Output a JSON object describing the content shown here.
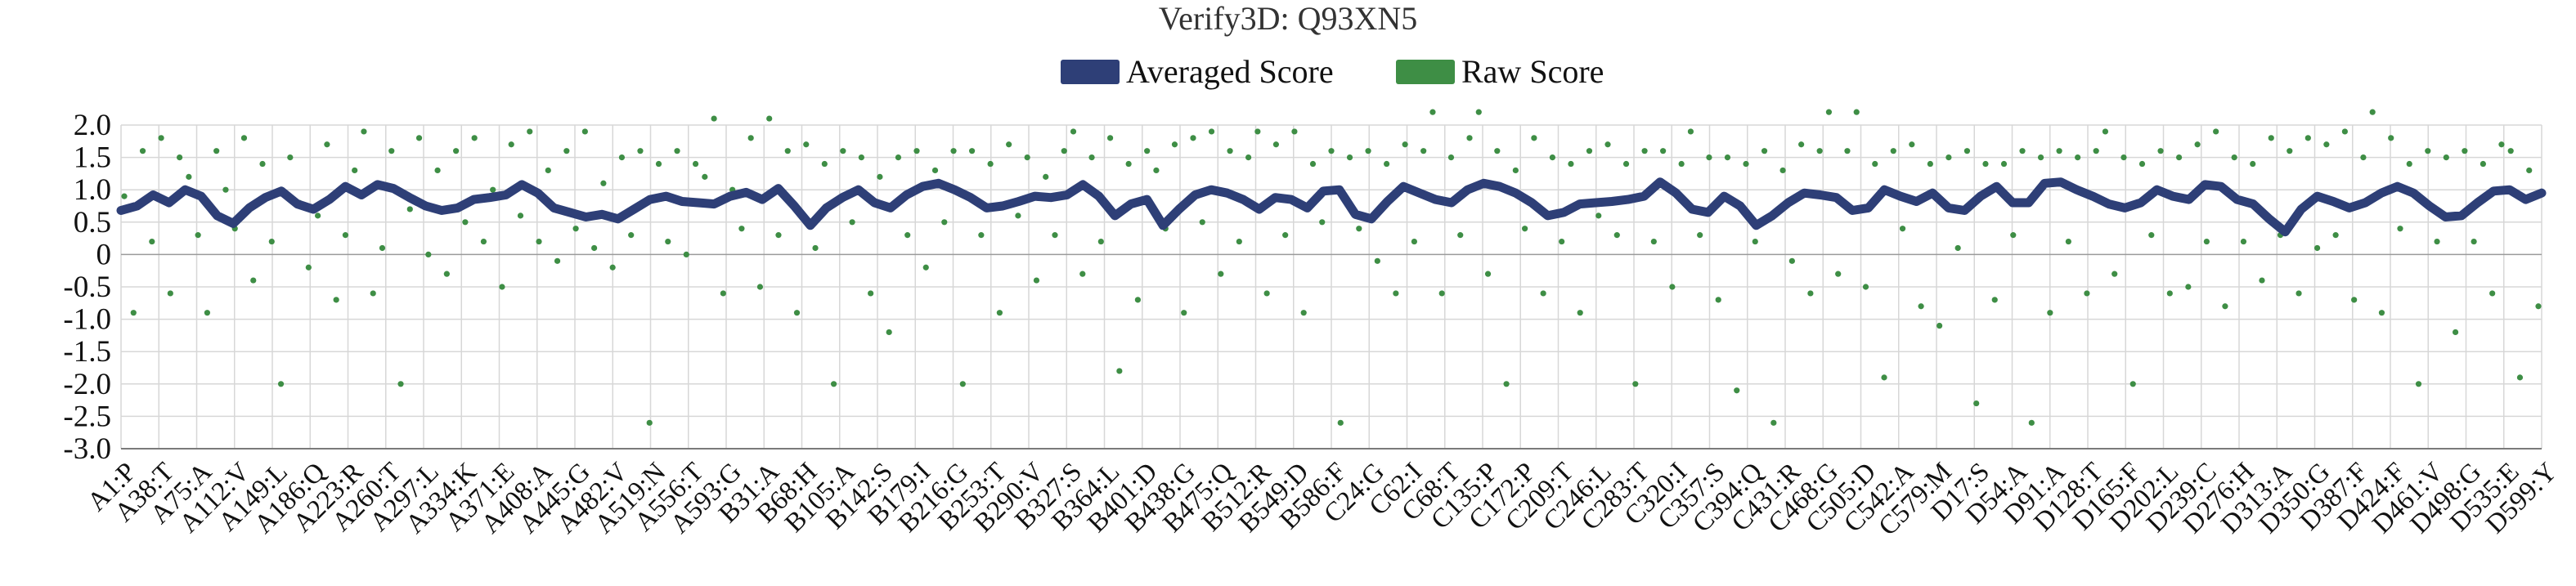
{
  "chart_data": {
    "type": "line+scatter",
    "title": "Verify3D: Q93XN5",
    "xlabel": "",
    "ylabel": "",
    "ylim": [
      -3.0,
      2.0
    ],
    "yticks": [
      2.0,
      1.5,
      1.0,
      0.5,
      0,
      -0.5,
      -1.0,
      -1.5,
      -2.0,
      -2.5,
      -3.0
    ],
    "ytick_labels": [
      "2.0",
      "1.5",
      "1.0",
      "0.5",
      "0",
      "-0.5",
      "-1.0",
      "-1.5",
      "-2.0",
      "-2.5",
      "-3.0"
    ],
    "grid": true,
    "legend_position": "top-center",
    "colors": {
      "averaged": "#2e3f77",
      "raw": "#3e8e45"
    },
    "series": [
      {
        "name": "Averaged Score",
        "kind": "line",
        "values": [
          0.68,
          0.75,
          0.92,
          0.8,
          1.0,
          0.9,
          0.6,
          0.48,
          0.72,
          0.88,
          0.98,
          0.78,
          0.7,
          0.85,
          1.05,
          0.92,
          1.08,
          1.02,
          0.88,
          0.75,
          0.68,
          0.72,
          0.85,
          0.88,
          0.92,
          1.08,
          0.95,
          0.72,
          0.65,
          0.58,
          0.62,
          0.55,
          0.7,
          0.85,
          0.9,
          0.82,
          0.8,
          0.78,
          0.9,
          0.96,
          0.85,
          1.02,
          0.75,
          0.45,
          0.72,
          0.88,
          1.0,
          0.8,
          0.72,
          0.92,
          1.05,
          1.1,
          1.0,
          0.88,
          0.72,
          0.75,
          0.82,
          0.9,
          0.88,
          0.92,
          1.08,
          0.9,
          0.6,
          0.78,
          0.85,
          0.45,
          0.7,
          0.92,
          1.0,
          0.95,
          0.85,
          0.7,
          0.88,
          0.85,
          0.72,
          0.98,
          1.0,
          0.62,
          0.55,
          0.82,
          1.05,
          0.95,
          0.85,
          0.8,
          1.0,
          1.1,
          1.05,
          0.95,
          0.8,
          0.6,
          0.65,
          0.78,
          0.8,
          0.82,
          0.85,
          0.9,
          1.12,
          0.95,
          0.7,
          0.65,
          0.9,
          0.75,
          0.45,
          0.6,
          0.8,
          0.95,
          0.92,
          0.88,
          0.68,
          0.72,
          1.0,
          0.9,
          0.82,
          0.95,
          0.72,
          0.68,
          0.9,
          1.05,
          0.8,
          0.8,
          1.1,
          1.12,
          1.0,
          0.9,
          0.78,
          0.72,
          0.8,
          1.0,
          0.9,
          0.85,
          1.08,
          1.05,
          0.85,
          0.78,
          0.55,
          0.35,
          0.7,
          0.9,
          0.82,
          0.72,
          0.8,
          0.95,
          1.05,
          0.95,
          0.75,
          0.58,
          0.6,
          0.8,
          0.98,
          1.0,
          0.85,
          0.95
        ]
      },
      {
        "name": "Raw Score",
        "kind": "scatter",
        "values": [
          0.9,
          -0.9,
          1.6,
          0.2,
          1.8,
          -0.6,
          1.5,
          1.2,
          0.3,
          -0.9,
          1.6,
          1.0,
          0.4,
          1.8,
          -0.4,
          1.4,
          0.2,
          -2.0,
          1.5,
          0.8,
          -0.2,
          0.6,
          1.7,
          -0.7,
          0.3,
          1.3,
          1.9,
          -0.6,
          0.1,
          1.6,
          -2.0,
          0.7,
          1.8,
          0.0,
          1.3,
          -0.3,
          1.6,
          0.5,
          1.8,
          0.2,
          1.0,
          -0.5,
          1.7,
          0.6,
          1.9,
          0.2,
          1.3,
          -0.1,
          1.6,
          0.4,
          1.9,
          0.1,
          1.1,
          -0.2,
          1.5,
          0.3,
          1.6,
          -2.6,
          1.4,
          0.2,
          1.6,
          0.0,
          1.4,
          1.2,
          2.1,
          -0.6,
          1.0,
          0.4,
          1.8,
          -0.5,
          2.1,
          0.3,
          1.6,
          -0.9,
          1.7,
          0.1,
          1.4,
          -2.0,
          1.6,
          0.5,
          1.5,
          -0.6,
          1.2,
          -1.2,
          1.5,
          0.3,
          1.6,
          -0.2,
          1.3,
          0.5,
          1.6,
          -2.0,
          1.6,
          0.3,
          1.4,
          -0.9,
          1.7,
          0.6,
          1.5,
          -0.4,
          1.2,
          0.3,
          1.6,
          1.9,
          -0.3,
          1.5,
          0.2,
          1.8,
          -1.8,
          1.4,
          -0.7,
          1.6,
          1.3,
          0.4,
          1.7,
          -0.9,
          1.8,
          0.5,
          1.9,
          -0.3,
          1.6,
          0.2,
          1.5,
          1.9,
          -0.6,
          1.7,
          0.3,
          1.9,
          -0.9,
          1.4,
          0.5,
          1.6,
          -2.6,
          1.5,
          0.4,
          1.6,
          -0.1,
          1.4,
          -0.6,
          1.7,
          0.2,
          1.6,
          2.2,
          -0.6,
          1.5,
          0.3,
          1.8,
          2.2,
          -0.3,
          1.6,
          -2.0,
          1.3,
          0.4,
          1.8,
          -0.6,
          1.5,
          0.2,
          1.4,
          -0.9,
          1.6,
          0.6,
          1.7,
          0.3,
          1.4,
          -2.0,
          1.6,
          0.2,
          1.6,
          -0.5,
          1.4,
          1.9,
          0.3,
          1.5,
          -0.7,
          1.5,
          -2.1,
          1.4,
          0.2,
          1.6,
          -2.6,
          1.3,
          -0.1,
          1.7,
          -0.6,
          1.6,
          2.2,
          -0.3,
          1.6,
          2.2,
          -0.5,
          1.4,
          -1.9,
          1.6,
          0.4,
          1.7,
          -0.8,
          1.4,
          -1.1,
          1.5,
          0.1,
          1.6,
          -2.3,
          1.4,
          -0.7,
          1.4,
          0.3,
          1.6,
          -2.6,
          1.5,
          -0.9,
          1.6,
          0.2,
          1.5,
          -0.6,
          1.6,
          1.9,
          -0.3,
          1.5,
          -2.0,
          1.4,
          0.3,
          1.6,
          -0.6,
          1.5,
          -0.5,
          1.7,
          0.2,
          1.9,
          -0.8,
          1.5,
          0.2,
          1.4,
          -0.4,
          1.8,
          0.3,
          1.6,
          -0.6,
          1.8,
          0.1,
          1.7,
          0.3,
          1.9,
          -0.7,
          1.5,
          2.2,
          -0.9,
          1.8,
          0.4,
          1.4,
          -2.0,
          1.6,
          0.2,
          1.5,
          -1.2,
          1.6,
          0.2,
          1.4,
          -0.6,
          1.7,
          1.6,
          -1.9,
          1.3,
          -0.8
        ]
      }
    ],
    "x_tick_labels": [
      "A1:P",
      "A38:T",
      "A75:A",
      "A112:V",
      "A149:L",
      "A186:Q",
      "A223:R",
      "A260:T",
      "A297:L",
      "A334:K",
      "A371:E",
      "A408:A",
      "A445:G",
      "A482:V",
      "A519:N",
      "A556:T",
      "A593:G",
      "B31:A",
      "B68:H",
      "B105:A",
      "B142:S",
      "B179:I",
      "B216:G",
      "B253:T",
      "B290:V",
      "B327:S",
      "B364:L",
      "B401:D",
      "B438:G",
      "B475:Q",
      "B512:R",
      "B549:D",
      "B586:F",
      "C24:G",
      "C62:I",
      "C68:T",
      "C135:P",
      "C172:P",
      "C209:T",
      "C246:L",
      "C283:T",
      "C320:I",
      "C357:S",
      "C394:Q",
      "C431:R",
      "C468:G",
      "C505:D",
      "C542:A",
      "C579:M",
      "D17:S",
      "D54:A",
      "D91:A",
      "D128:T",
      "D165:F",
      "D202:L",
      "D239:C",
      "D276:H",
      "D313:A",
      "D350:G",
      "D387:F",
      "D424:F",
      "D461:V",
      "D498:G",
      "D535:E",
      "D599:Y"
    ]
  }
}
